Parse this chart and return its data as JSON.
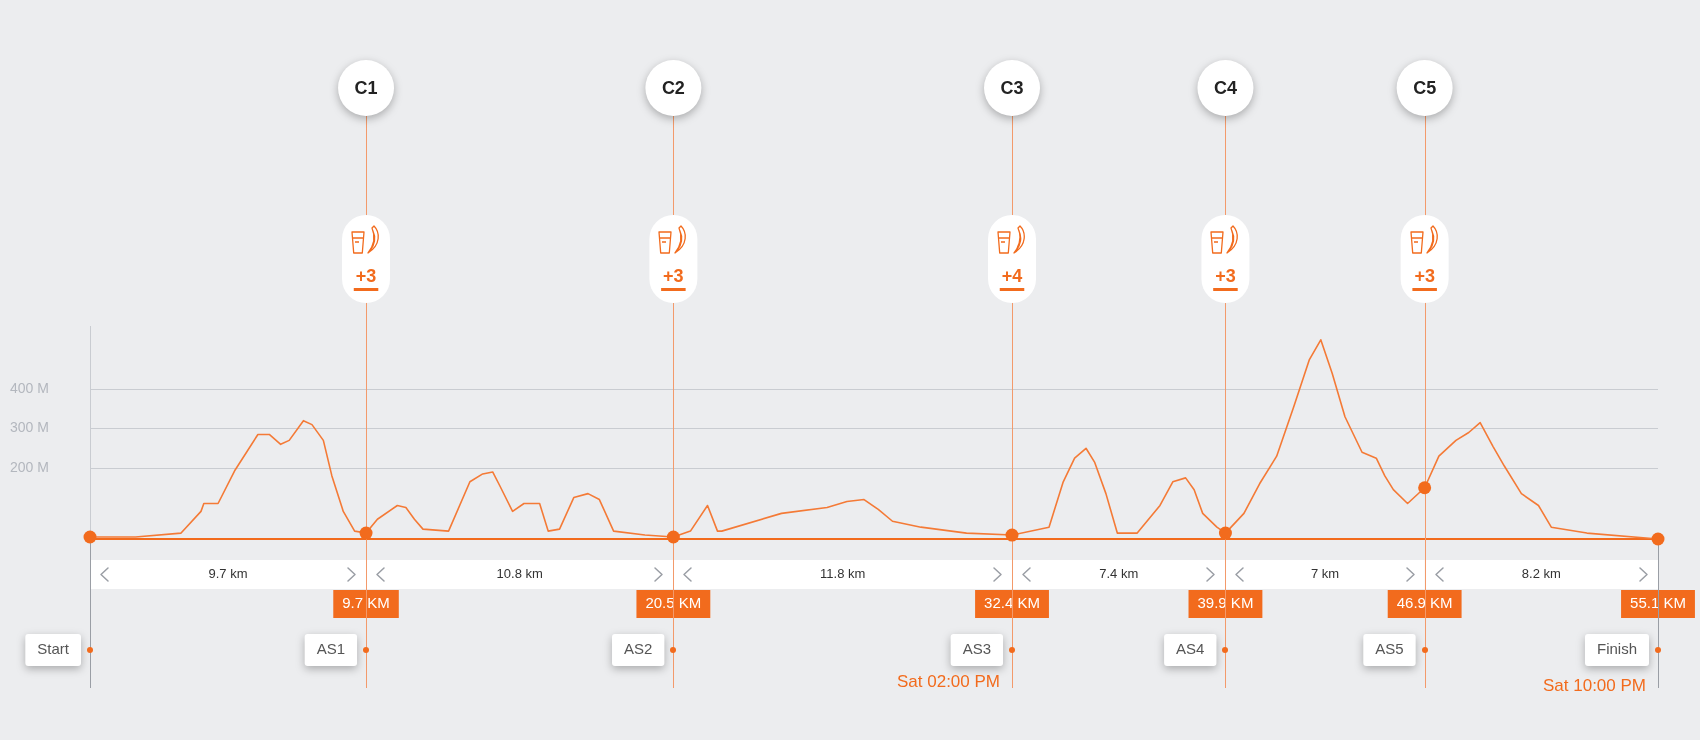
{
  "chart_data": {
    "type": "line",
    "x": [
      0,
      1.6,
      3.2,
      3.9,
      4.0,
      4.5,
      5.1,
      5.9,
      6.3,
      6.7,
      7.0,
      7.5,
      7.8,
      8.2,
      8.5,
      8.9,
      9.3,
      9.7,
      10.1,
      10.8,
      11.1,
      11.4,
      11.7,
      12.6,
      13.35,
      13.8,
      14.15,
      14.4,
      14.85,
      15.25,
      15.8,
      16.1,
      16.5,
      17.0,
      17.5,
      17.9,
      18.4,
      19.5,
      20.5,
      21.1,
      21.7,
      22.05,
      22.2,
      24.3,
      25.9,
      26.6,
      27.2,
      27.7,
      28.2,
      29.2,
      30.8,
      32.4,
      33.7,
      34.2,
      34.6,
      35.0,
      35.3,
      35.7,
      36.1,
      36.8,
      37.6,
      38.05,
      38.5,
      38.8,
      39.1,
      39.6,
      39.9,
      40.55,
      41.1,
      41.7,
      42.3,
      42.85,
      43.25,
      43.65,
      44.1,
      44.7,
      45.2,
      45.5,
      45.8,
      46.3,
      46.9,
      47.4,
      48.0,
      48.45,
      48.85,
      49.3,
      49.7,
      50.3,
      50.9,
      51.35,
      52.6,
      55.1
    ],
    "series": [
      {
        "color": "#f47a36",
        "values": [
          25,
          25,
          35,
          90,
          110,
          110,
          195,
          285,
          285,
          260,
          270,
          320,
          310,
          270,
          180,
          90,
          40,
          35,
          70,
          105,
          100,
          70,
          45,
          40,
          165,
          185,
          190,
          155,
          90,
          110,
          110,
          40,
          45,
          125,
          135,
          120,
          40,
          30,
          25,
          40,
          105,
          40,
          40,
          85,
          100,
          115,
          120,
          95,
          65,
          50,
          35,
          30,
          50,
          165,
          225,
          250,
          215,
          135,
          35,
          35,
          105,
          165,
          175,
          145,
          85,
          50,
          35,
          85,
          160,
          230,
          355,
          475,
          525,
          440,
          330,
          240,
          225,
          180,
          145,
          110,
          150,
          230,
          270,
          290,
          315,
          255,
          205,
          135,
          105,
          50,
          35,
          20
        ]
      },
      {
        "type": "scatter",
        "color": "#f26b1d",
        "marker": "circle",
        "x": [
          0,
          9.7,
          20.5,
          32.4,
          39.9,
          46.9,
          55.1
        ],
        "values": [
          25,
          35,
          25,
          30,
          35,
          150,
          20
        ]
      }
    ],
    "xlim": [
      0,
      55.1
    ],
    "xticks": [
      {
        "value": 9.7,
        "label": "9.7 KM"
      },
      {
        "value": 20.5,
        "label": "20.5 KM"
      },
      {
        "value": 32.4,
        "label": "32.4 KM"
      },
      {
        "value": 39.9,
        "label": "39.9 KM"
      },
      {
        "value": 46.9,
        "label": "46.9 KM"
      },
      {
        "value": 55.1,
        "label": "55.1 KM"
      }
    ],
    "ylim": [
      20,
      560
    ],
    "yticks": [
      {
        "value": 200,
        "label": "200 M"
      },
      {
        "value": 300,
        "label": "300 M"
      },
      {
        "value": 400,
        "label": "400 M"
      }
    ],
    "grid": "y",
    "ref_lines": [
      {
        "axis": "x",
        "value": 9.7,
        "label": "C1",
        "color": "#f39a6b"
      },
      {
        "axis": "x",
        "value": 20.5,
        "label": "C2",
        "color": "#f39a6b"
      },
      {
        "axis": "x",
        "value": 32.4,
        "label": "C3",
        "color": "#f39a6b"
      },
      {
        "axis": "x",
        "value": 39.9,
        "label": "C4",
        "color": "#f39a6b"
      },
      {
        "axis": "x",
        "value": 46.9,
        "label": "C5",
        "color": "#f39a6b"
      }
    ],
    "annotations": [
      "+3",
      "+3",
      "+4",
      "+3",
      "+3",
      "9.7 km",
      "10.8 km",
      "11.8 km",
      "7.4 km",
      "7 km",
      "8.2 km",
      "Start",
      "AS1",
      "AS2",
      "AS3",
      "AS4",
      "AS5",
      "Finish",
      {
        "text": "Sat 02:00 PM",
        "x": 32.4,
        "y": 30
      },
      {
        "text": "Sat 10:00 PM",
        "x": 55.1,
        "y": 20
      }
    ]
  }
}
